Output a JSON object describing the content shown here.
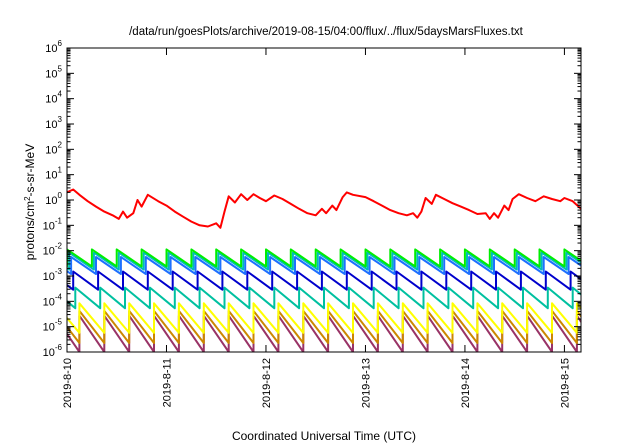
{
  "chart_data": {
    "type": "line",
    "title": "/data/run/goesPlots/archive/2019-08-15/04:00/flux/../flux/5daysMarsFluxes.txt",
    "xlabel": "Coordinated Universal Time (UTC)",
    "ylabel": {
      "prefix": "protons/cm",
      "exponent": "2",
      "suffix": "-s-sr-MeV"
    },
    "y_scale": "log",
    "ylim": [
      1e-06,
      1000000.0
    ],
    "xlim": [
      "2019-08-10T00:00",
      "2019-08-15T04:00"
    ],
    "x_ticks": [
      {
        "date": "2019-08-10T00:00",
        "label": "2019-8-10"
      },
      {
        "date": "2019-08-11T00:00",
        "label": "2019-8-11"
      },
      {
        "date": "2019-08-12T00:00",
        "label": "2019-8-12"
      },
      {
        "date": "2019-08-13T00:00",
        "label": "2019-8-13"
      },
      {
        "date": "2019-08-14T00:00",
        "label": "2019-8-14"
      },
      {
        "date": "2019-08-15T00:00",
        "label": "2019-8-15"
      }
    ],
    "y_ticks": [
      {
        "value": 1e-06,
        "base": "10",
        "exp": "-6"
      },
      {
        "value": 1e-05,
        "base": "10",
        "exp": "-5"
      },
      {
        "value": 0.0001,
        "base": "10",
        "exp": "-4"
      },
      {
        "value": 0.001,
        "base": "10",
        "exp": "-3"
      },
      {
        "value": 0.01,
        "base": "10",
        "exp": "-2"
      },
      {
        "value": 0.1,
        "base": "10",
        "exp": "-1"
      },
      {
        "value": 1,
        "base": "10",
        "exp": "0"
      },
      {
        "value": 10,
        "base": "10",
        "exp": "1"
      },
      {
        "value": 100,
        "base": "10",
        "exp": "2"
      },
      {
        "value": 1000,
        "base": "10",
        "exp": "3"
      },
      {
        "value": 10000,
        "base": "10",
        "exp": "4"
      },
      {
        "value": 100000,
        "base": "10",
        "exp": "5"
      },
      {
        "value": 1000000,
        "base": "10",
        "exp": "6"
      }
    ],
    "grid": false,
    "legend": "none",
    "series": [
      {
        "color": "#ff0000",
        "points": [
          [
            "2019-08-10T00:00",
            2.0
          ],
          [
            "2019-08-10T01:30",
            2.6
          ],
          [
            "2019-08-10T03:00",
            1.6
          ],
          [
            "2019-08-10T05:00",
            0.9
          ],
          [
            "2019-08-10T07:00",
            0.55
          ],
          [
            "2019-08-10T09:00",
            0.35
          ],
          [
            "2019-08-10T11:00",
            0.25
          ],
          [
            "2019-08-10T12:30",
            0.18
          ],
          [
            "2019-08-10T13:30",
            0.35
          ],
          [
            "2019-08-10T14:30",
            0.2
          ],
          [
            "2019-08-10T16:00",
            0.3
          ],
          [
            "2019-08-10T17:00",
            1.0
          ],
          [
            "2019-08-10T18:00",
            0.55
          ],
          [
            "2019-08-10T19:30",
            1.6
          ],
          [
            "2019-08-10T22:00",
            0.9
          ],
          [
            "2019-08-11T00:00",
            0.6
          ],
          [
            "2019-08-11T02:00",
            0.35
          ],
          [
            "2019-08-11T04:00",
            0.22
          ],
          [
            "2019-08-11T06:00",
            0.14
          ],
          [
            "2019-08-11T08:00",
            0.1
          ],
          [
            "2019-08-11T10:00",
            0.09
          ],
          [
            "2019-08-11T12:00",
            0.12
          ],
          [
            "2019-08-11T13:00",
            0.08
          ],
          [
            "2019-08-11T14:00",
            0.35
          ],
          [
            "2019-08-11T15:00",
            1.4
          ],
          [
            "2019-08-11T16:30",
            0.8
          ],
          [
            "2019-08-11T18:00",
            1.7
          ],
          [
            "2019-08-11T19:30",
            1.0
          ],
          [
            "2019-08-11T21:00",
            1.7
          ],
          [
            "2019-08-11T22:30",
            1.2
          ],
          [
            "2019-08-12T00:00",
            0.9
          ],
          [
            "2019-08-12T02:00",
            1.5
          ],
          [
            "2019-08-12T04:00",
            1.1
          ],
          [
            "2019-08-12T06:00",
            0.7
          ],
          [
            "2019-08-12T08:00",
            0.45
          ],
          [
            "2019-08-12T10:00",
            0.3
          ],
          [
            "2019-08-12T12:00",
            0.25
          ],
          [
            "2019-08-12T13:30",
            0.45
          ],
          [
            "2019-08-12T14:30",
            0.3
          ],
          [
            "2019-08-12T16:00",
            0.6
          ],
          [
            "2019-08-12T17:00",
            0.4
          ],
          [
            "2019-08-12T18:30",
            1.3
          ],
          [
            "2019-08-12T19:30",
            2.0
          ],
          [
            "2019-08-12T21:00",
            1.6
          ],
          [
            "2019-08-13T00:00",
            1.3
          ],
          [
            "2019-08-13T02:00",
            0.9
          ],
          [
            "2019-08-13T04:00",
            0.6
          ],
          [
            "2019-08-13T06:00",
            0.4
          ],
          [
            "2019-08-13T08:00",
            0.3
          ],
          [
            "2019-08-13T10:00",
            0.25
          ],
          [
            "2019-08-13T11:30",
            0.3
          ],
          [
            "2019-08-13T12:30",
            0.2
          ],
          [
            "2019-08-13T13:30",
            0.35
          ],
          [
            "2019-08-13T14:30",
            1.2
          ],
          [
            "2019-08-13T16:00",
            0.7
          ],
          [
            "2019-08-13T17:00",
            1.6
          ],
          [
            "2019-08-13T19:00",
            1.1
          ],
          [
            "2019-08-13T21:00",
            0.75
          ],
          [
            "2019-08-13T23:00",
            0.55
          ],
          [
            "2019-08-14T01:00",
            0.4
          ],
          [
            "2019-08-14T03:00",
            0.28
          ],
          [
            "2019-08-14T05:00",
            0.3
          ],
          [
            "2019-08-14T06:00",
            0.18
          ],
          [
            "2019-08-14T07:00",
            0.3
          ],
          [
            "2019-08-14T08:00",
            0.2
          ],
          [
            "2019-08-14T09:30",
            0.6
          ],
          [
            "2019-08-14T10:30",
            0.4
          ],
          [
            "2019-08-14T11:30",
            1.1
          ],
          [
            "2019-08-14T13:00",
            1.7
          ],
          [
            "2019-08-14T15:00",
            1.2
          ],
          [
            "2019-08-14T17:00",
            0.9
          ],
          [
            "2019-08-14T19:00",
            1.4
          ],
          [
            "2019-08-14T21:00",
            1.1
          ],
          [
            "2019-08-14T23:00",
            0.9
          ],
          [
            "2019-08-15T00:00",
            1.2
          ],
          [
            "2019-08-15T02:00",
            0.9
          ],
          [
            "2019-08-15T04:00",
            0.45
          ]
        ]
      },
      {
        "color": "#00ee00",
        "base": 0.004,
        "amp": 2.8,
        "period_hours": 6,
        "phase_hours": 0
      },
      {
        "color": "#00bbbb",
        "base": 0.003,
        "amp": 2.8,
        "period_hours": 6,
        "phase_hours": 0.5
      },
      {
        "color": "#1e70ff",
        "base": 0.002,
        "amp": 2.8,
        "period_hours": 6,
        "phase_hours": 1
      },
      {
        "color": "#0000cc",
        "base": 0.0005,
        "amp": 3.0,
        "period_hours": 6,
        "phase_hours": 1.5
      },
      {
        "color": "#00c0a0",
        "base": 0.0001,
        "amp": 3.5,
        "period_hours": 6,
        "phase_hours": 2
      },
      {
        "color": "#ffff00",
        "base": 1.4e-05,
        "amp": 6.0,
        "period_hours": 6,
        "phase_hours": 3
      },
      {
        "color": "#cc8800",
        "base": 6e-06,
        "amp": 7.0,
        "period_hours": 6,
        "phase_hours": 3
      },
      {
        "color": "#993366",
        "base": 3e-06,
        "amp": 9.0,
        "period_hours": 6,
        "phase_hours": 3
      }
    ]
  }
}
